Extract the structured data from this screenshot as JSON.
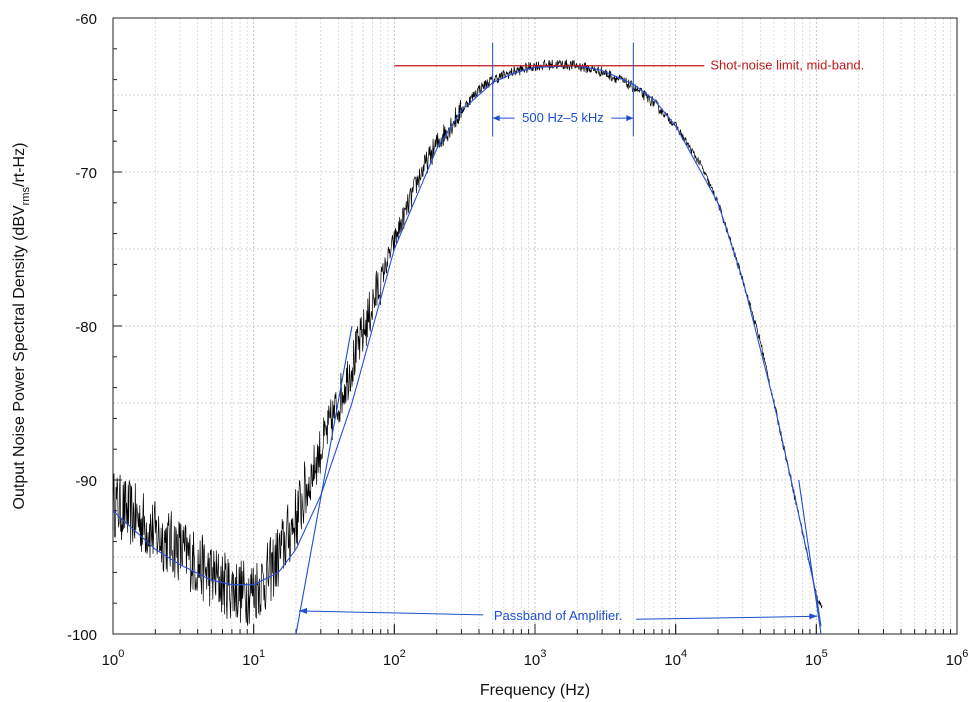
{
  "chart_data": {
    "type": "line",
    "title": "",
    "xlabel": "Frequency (Hz)",
    "ylabel": "Output Noise Power Spectral Density (dBV",
    "ylabel_sub": "rms",
    "ylabel_end": "/rt-Hz)",
    "x_scale": "log",
    "xlim": [
      1,
      1000000
    ],
    "ylim": [
      -100,
      -60
    ],
    "grid": true,
    "x_ticks": [
      {
        "base": "10",
        "exp": "0",
        "value": 1
      },
      {
        "base": "10",
        "exp": "1",
        "value": 10
      },
      {
        "base": "10",
        "exp": "2",
        "value": 100
      },
      {
        "base": "10",
        "exp": "3",
        "value": 1000
      },
      {
        "base": "10",
        "exp": "4",
        "value": 10000
      },
      {
        "base": "10",
        "exp": "5",
        "value": 100000
      },
      {
        "base": "10",
        "exp": "6",
        "value": 1000000
      }
    ],
    "y_ticks": [
      {
        "label": "-60",
        "value": -60
      },
      {
        "label": "-70",
        "value": -70
      },
      {
        "label": "-80",
        "value": -80
      },
      {
        "label": "-90",
        "value": -90
      },
      {
        "label": "-100",
        "value": -100
      }
    ],
    "series": [
      {
        "name": "",
        "color": "#000000",
        "noisy": true,
        "x": [
          1,
          1.5,
          2,
          3,
          4,
          5,
          6,
          7,
          8,
          9,
          10,
          12,
          15,
          20,
          25,
          30,
          40,
          50,
          60,
          80,
          100,
          150,
          200,
          300,
          400,
          500,
          700,
          1000,
          1500,
          2000,
          3000,
          4000,
          5000,
          7000,
          10000,
          15000,
          20000,
          30000,
          40000,
          50000,
          70000,
          100000,
          110000
        ],
        "y": [
          -91.5,
          -92.5,
          -93.5,
          -94.5,
          -95.5,
          -96.2,
          -96.7,
          -97,
          -97.2,
          -97.3,
          -97.1,
          -96.5,
          -95,
          -92.5,
          -90,
          -88,
          -85,
          -82.5,
          -80.5,
          -77,
          -74.5,
          -70.3,
          -68.2,
          -66,
          -64.6,
          -64,
          -63.5,
          -63.1,
          -63,
          -63.1,
          -63.5,
          -64,
          -64.5,
          -65.5,
          -67,
          -69.5,
          -72,
          -77,
          -81,
          -85,
          -91,
          -97.5,
          -98.3
        ]
      },
      {
        "name": "",
        "color": "#2a4fd6",
        "noisy": false,
        "x": [
          1,
          2,
          3,
          5,
          7,
          10,
          15,
          20,
          30,
          50,
          100,
          200,
          300,
          500,
          700,
          1000,
          2000,
          3000,
          5000,
          7000,
          10000,
          20000,
          30000,
          50000,
          70000,
          100000,
          108000
        ],
        "y": [
          -92,
          -94.5,
          -95.5,
          -96.5,
          -96.8,
          -96.8,
          -96,
          -94.5,
          -91,
          -85,
          -75,
          -68.5,
          -66,
          -64.2,
          -63.6,
          -63.2,
          -63.1,
          -63.4,
          -64.3,
          -65.3,
          -67,
          -72,
          -77,
          -85,
          -91,
          -97.5,
          -99.5
        ]
      }
    ],
    "annotations": {
      "shot_noise": {
        "text": "Shot-noise limit, mid-band.",
        "y": -63.1,
        "x_start": 100,
        "x_end": 16000,
        "color": "#c0191c"
      },
      "band_label": {
        "text": "500 Hz–5 kHz",
        "x_start": 500,
        "x_end": 5000,
        "y_marker": -64.5,
        "color": "#1f4fd0"
      },
      "passband_label": {
        "text": "Passband of Amplifier.",
        "x_start": 20,
        "x_end": 105000,
        "y": -98.5,
        "color": "#1f4fd0"
      },
      "passband_lines": [
        {
          "x1": 20,
          "y1": -100,
          "x2": 50,
          "y2": -80
        },
        {
          "x1": 75000,
          "y1": -90,
          "x2": 108000,
          "y2": -100
        }
      ]
    }
  }
}
